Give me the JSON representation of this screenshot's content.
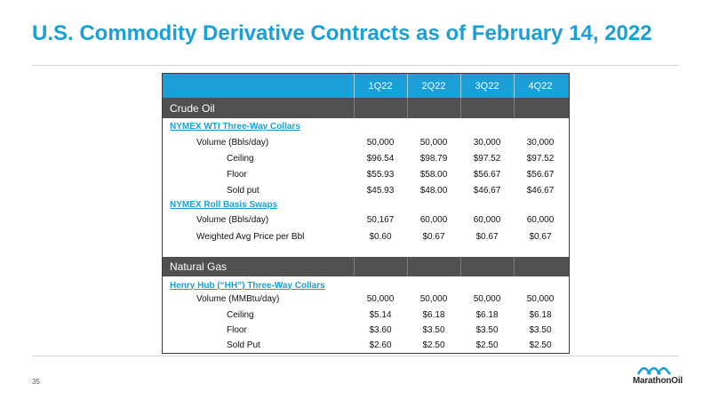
{
  "title": "U.S. Commodity Derivative Contracts as of February 14, 2022",
  "page_number": "35",
  "logo_text": "MarathonOil",
  "colors": {
    "accent": "#1a9fd6",
    "section": "#505050"
  },
  "columns": [
    "1Q22",
    "2Q22",
    "3Q22",
    "4Q22"
  ],
  "crude": {
    "section_label": "Crude Oil",
    "wti": {
      "heading": "NYMEX WTI Three-Way Collars",
      "rows": [
        {
          "label": "Volume (Bbls/day)",
          "values": [
            "50,000",
            "50,000",
            "30,000",
            "30,000"
          ]
        },
        {
          "label": "Ceiling",
          "values": [
            "$96.54",
            "$98.79",
            "$97.52",
            "$97.52"
          ]
        },
        {
          "label": "Floor",
          "values": [
            "$55.93",
            "$58.00",
            "$56.67",
            "$56.67"
          ]
        },
        {
          "label": "Sold put",
          "values": [
            "$45.93",
            "$48.00",
            "$46.67",
            "$46.67"
          ]
        }
      ]
    },
    "roll": {
      "heading": "NYMEX Roll Basis Swaps",
      "rows": [
        {
          "label": "Volume (Bbls/day)",
          "values": [
            "50,167",
            "60,000",
            "60,000",
            "60,000"
          ]
        },
        {
          "label": "Weighted Avg Price per Bbl",
          "values": [
            "$0.60",
            "$0.67",
            "$0.67",
            "$0.67"
          ]
        }
      ]
    }
  },
  "gas": {
    "section_label": "Natural Gas",
    "hh": {
      "heading": "Henry Hub (“HH”) Three-Way Collars",
      "rows": [
        {
          "label": "Volume (MMBtu/day)",
          "values": [
            "50,000",
            "50,000",
            "50,000",
            "50,000"
          ]
        },
        {
          "label": "Ceiling",
          "values": [
            "$5.14",
            "$6.18",
            "$6.18",
            "$6.18"
          ]
        },
        {
          "label": "Floor",
          "values": [
            "$3.60",
            "$3.50",
            "$3.50",
            "$3.50"
          ]
        },
        {
          "label": "Sold Put",
          "values": [
            "$2.60",
            "$2.50",
            "$2.50",
            "$2.50"
          ]
        }
      ]
    }
  }
}
